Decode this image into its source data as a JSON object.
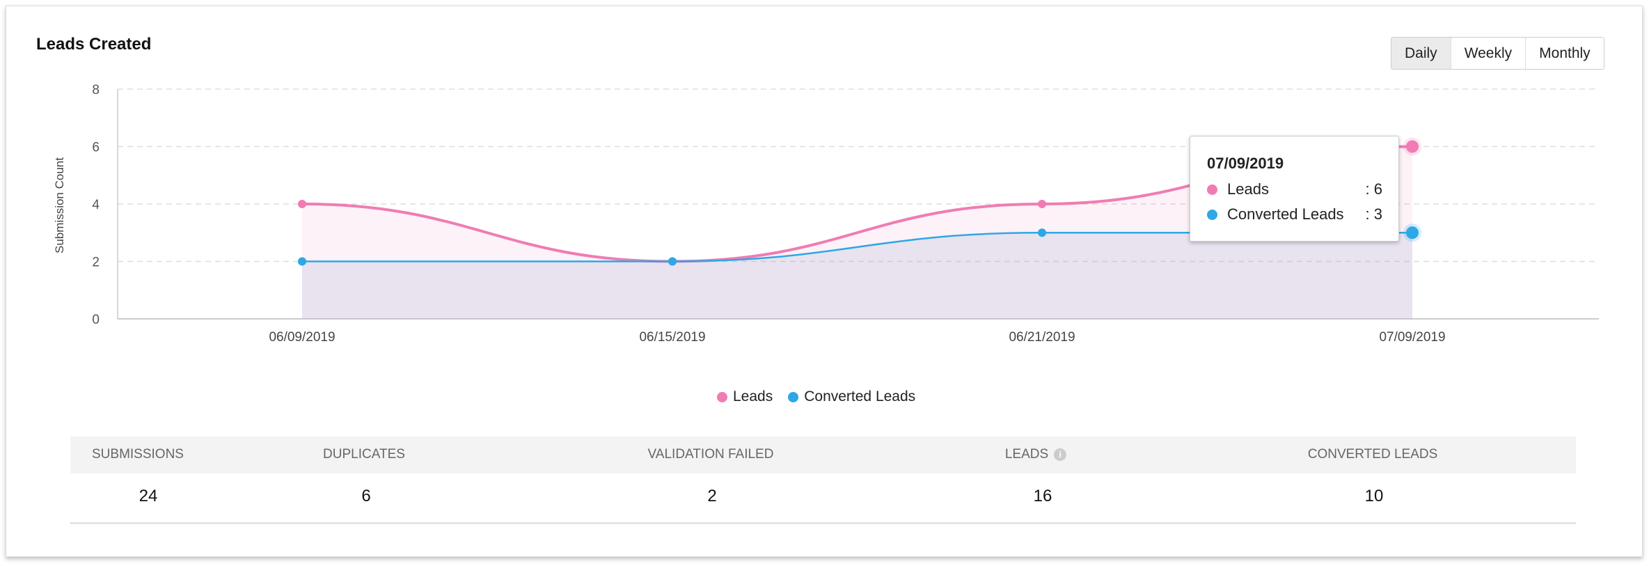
{
  "title": "Leads Created",
  "period_buttons": [
    "Daily",
    "Weekly",
    "Monthly"
  ],
  "selected_period": "Daily",
  "chart_data": {
    "type": "area",
    "title": "Leads Created",
    "xlabel": "",
    "ylabel": "Submission Count",
    "categories": [
      "06/09/2019",
      "06/15/2019",
      "06/21/2019",
      "07/09/2019"
    ],
    "yticks": [
      0,
      2,
      4,
      6,
      8
    ],
    "ylim": [
      0,
      8
    ],
    "grid": true,
    "legend": "bottom-center",
    "series": [
      {
        "name": "Leads",
        "color": "#f07cb3",
        "values": [
          4,
          2,
          4,
          6
        ]
      },
      {
        "name": "Converted Leads",
        "color": "#2ea7e6",
        "values": [
          2,
          2,
          3,
          3
        ]
      }
    ]
  },
  "tooltip": {
    "date": "07/09/2019",
    "rows": [
      {
        "label": "Leads",
        "value": ": 6"
      },
      {
        "label": "Converted Leads",
        "value": ": 3"
      }
    ]
  },
  "summary": {
    "headers": [
      "SUBMISSIONS",
      "DUPLICATES",
      "VALIDATION FAILED",
      "LEADS",
      "CONVERTED LEADS"
    ],
    "values": [
      "24",
      "6",
      "2",
      "16",
      "10"
    ],
    "info_icon": "i"
  }
}
